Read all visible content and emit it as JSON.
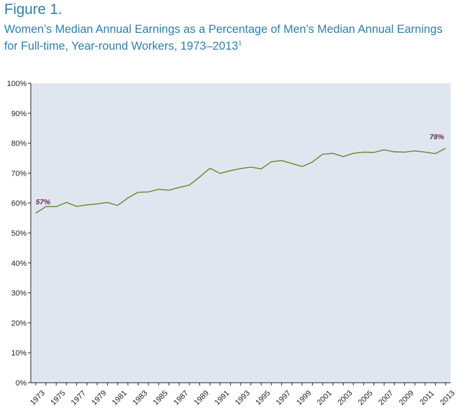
{
  "figure": {
    "label": "Figure 1.",
    "title": "Women’s Median Annual Earnings as a Percentage of Men’s Median Annual Earnings for Full-time, Year-round Workers, 1973–2013",
    "footnote_marker": "1"
  },
  "colors": {
    "title": "#2f7fa6",
    "plot_background": "#dfe6ef",
    "line": "#5f8a2a",
    "data_label": "#6b2a55"
  },
  "chart_data": {
    "type": "line",
    "title": "Women’s Median Annual Earnings as a Percentage of Men’s Median Annual Earnings for Full-time, Year-round Workers, 1973–2013",
    "xlabel": "",
    "ylabel": "",
    "ylim": [
      0,
      100
    ],
    "xlim": [
      1973,
      2013
    ],
    "grid": false,
    "legend": "none",
    "y_ticks": [
      "0%",
      "10%",
      "20%",
      "30%",
      "40%",
      "50%",
      "60%",
      "70%",
      "80%",
      "90%",
      "100%"
    ],
    "x_ticks": [
      "1973",
      "1975",
      "1977",
      "1979",
      "1981",
      "1983",
      "1985",
      "1987",
      "1989",
      "1991",
      "1993",
      "1995",
      "1997",
      "1999",
      "2001",
      "2003",
      "2005",
      "2007",
      "2009",
      "2011",
      "2013"
    ],
    "x": [
      1973,
      1974,
      1975,
      1976,
      1977,
      1978,
      1979,
      1980,
      1981,
      1982,
      1983,
      1984,
      1985,
      1986,
      1987,
      1988,
      1989,
      1990,
      1991,
      1992,
      1993,
      1994,
      1995,
      1996,
      1997,
      1998,
      1999,
      2000,
      2001,
      2002,
      2003,
      2004,
      2005,
      2006,
      2007,
      2008,
      2009,
      2010,
      2011,
      2012,
      2013
    ],
    "series": [
      {
        "values": [
          56.6,
          58.8,
          58.8,
          60.2,
          58.9,
          59.4,
          59.7,
          60.2,
          59.2,
          61.7,
          63.6,
          63.7,
          64.6,
          64.3,
          65.2,
          66.0,
          68.7,
          71.6,
          69.9,
          70.8,
          71.5,
          72.0,
          71.4,
          73.8,
          74.2,
          73.2,
          72.2,
          73.7,
          76.3,
          76.6,
          75.5,
          76.6,
          77.0,
          76.9,
          77.8,
          77.1,
          77.0,
          77.4,
          77.0,
          76.5,
          78.3
        ]
      }
    ],
    "annotations": [
      {
        "x": 1973,
        "y": 56.6,
        "text": "57%"
      },
      {
        "x": 2013,
        "y": 78.3,
        "text": "78%"
      }
    ]
  }
}
